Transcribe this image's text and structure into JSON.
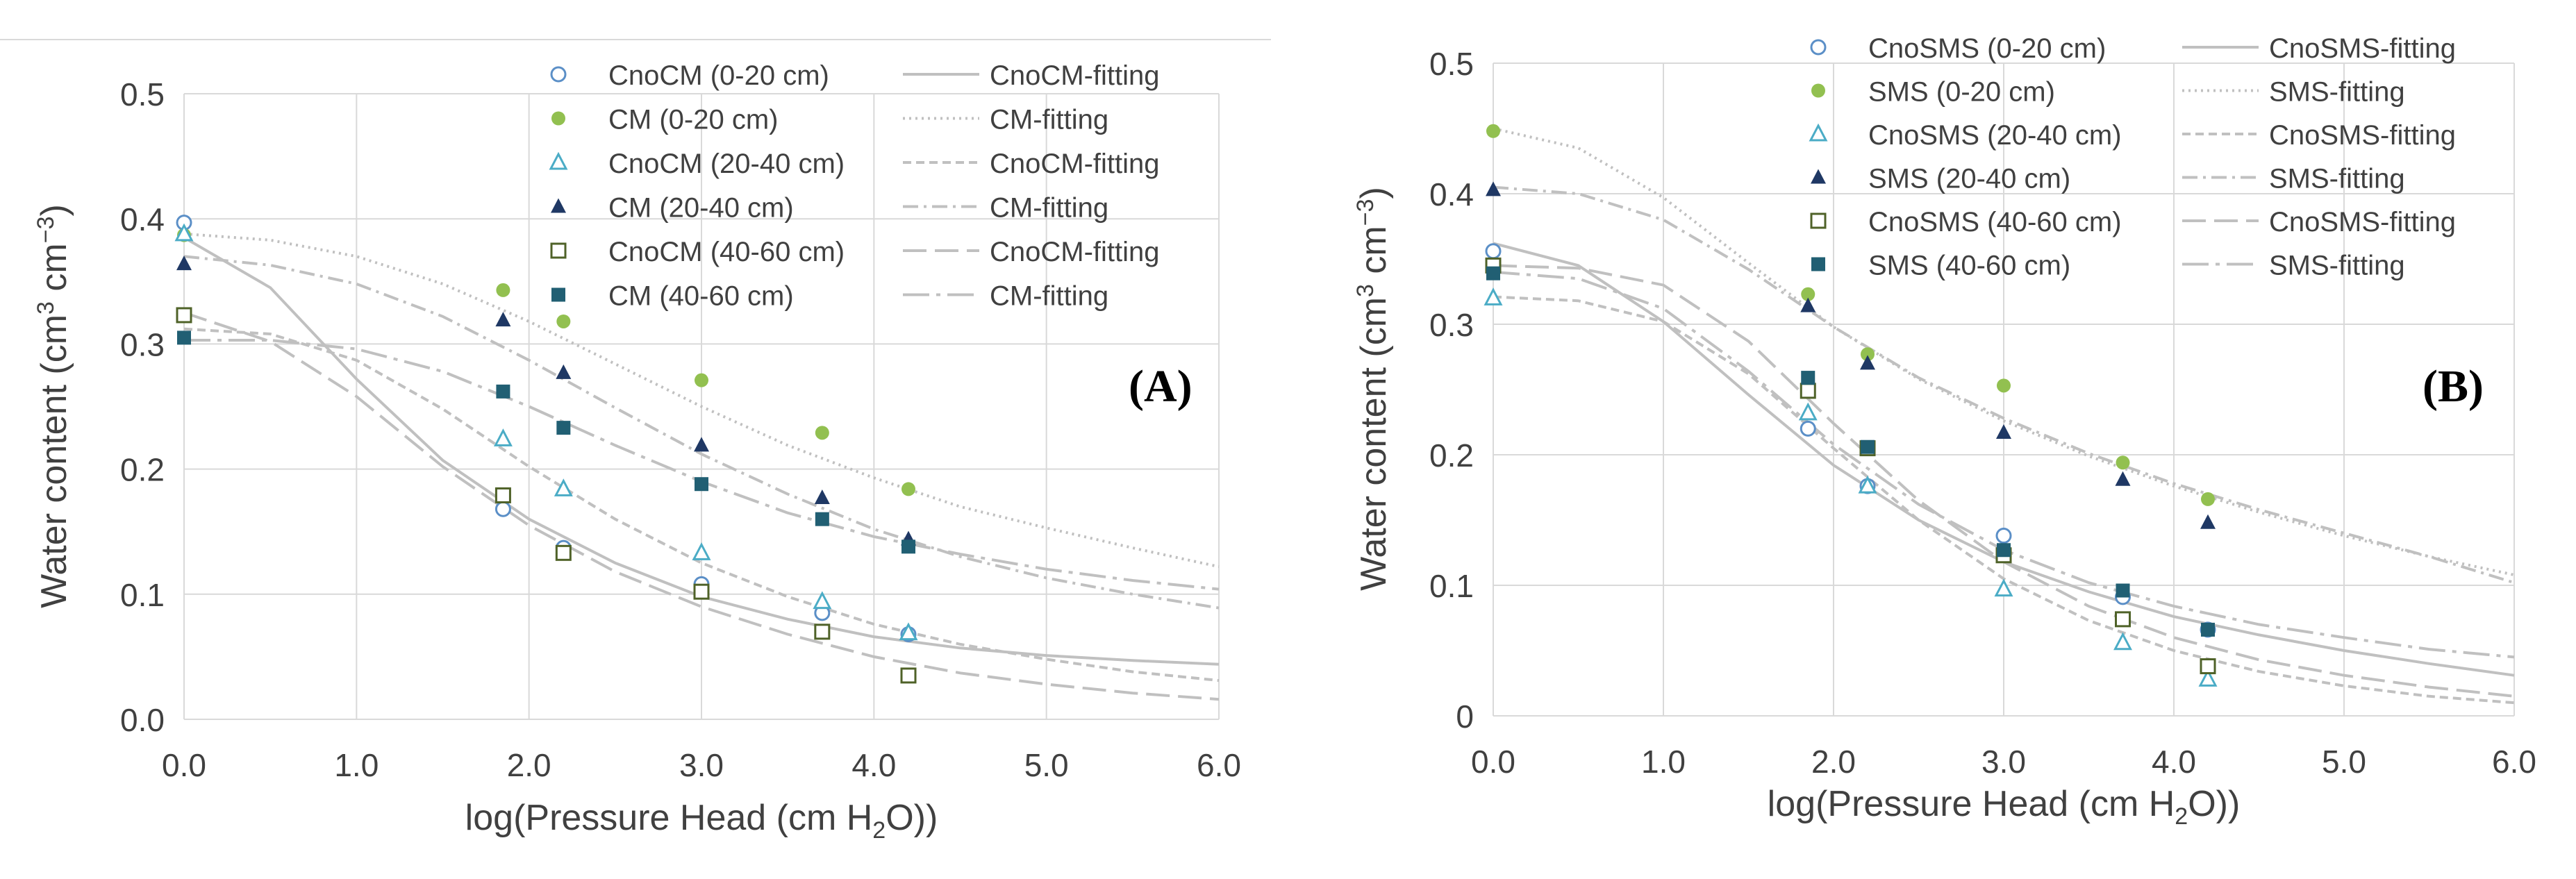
{
  "chart_data": [
    {
      "type": "scatter",
      "panel_label": "(A)",
      "xlabel_pre": "log(Pressure Head (cm H",
      "xlabel_sub": "2",
      "xlabel_post": "O))",
      "ylabel_pre": "Water content (cm",
      "ylabel_sup1": "3",
      "ylabel_mid": " cm",
      "ylabel_sup2": "−3",
      "ylabel_post": ")",
      "xlim": [
        0,
        6
      ],
      "ylim": [
        0,
        0.5
      ],
      "xticks": [
        0,
        1,
        2,
        3,
        4,
        5,
        6
      ],
      "xtick_labels": [
        "0.0",
        "1.0",
        "2.0",
        "3.0",
        "4.0",
        "5.0",
        "6.0"
      ],
      "yticks": [
        0,
        0.1,
        0.2,
        0.3,
        0.4,
        0.5
      ],
      "ytick_labels": [
        "0.0",
        "0.1",
        "0.2",
        "0.3",
        "0.4",
        "0.5"
      ],
      "grid": true,
      "legend_position": "top-right",
      "series": [
        {
          "name": "CnoCM (0-20 cm)",
          "marker": "circle-open",
          "color": "#5b8fc7",
          "x": [
            0,
            1.85,
            2.2,
            3.0,
            3.7,
            4.2
          ],
          "y": [
            0.397,
            0.168,
            0.137,
            0.108,
            0.085,
            0.068
          ]
        },
        {
          "name": "CM (0-20 cm)",
          "marker": "circle-filled",
          "color": "#92c050",
          "x": [
            0,
            1.85,
            2.2,
            3.0,
            3.7,
            4.2
          ],
          "y": [
            0.387,
            0.343,
            0.318,
            0.271,
            0.229,
            0.184
          ]
        },
        {
          "name": "CnoCM (20-40 cm)",
          "marker": "triangle-open",
          "color": "#4bacc6",
          "x": [
            0,
            1.85,
            2.2,
            3.0,
            3.7,
            4.2
          ],
          "y": [
            0.388,
            0.224,
            0.184,
            0.133,
            0.094,
            0.069
          ]
        },
        {
          "name": "CM (20-40 cm)",
          "marker": "triangle-filled",
          "color": "#1f3864",
          "x": [
            0,
            1.85,
            2.2,
            3.0,
            3.7,
            4.2
          ],
          "y": [
            0.364,
            0.319,
            0.277,
            0.219,
            0.177,
            0.144
          ]
        },
        {
          "name": "CnoCM (40-60 cm)",
          "marker": "square-open",
          "color": "#4f6228",
          "x": [
            0,
            1.85,
            2.2,
            3.0,
            3.7,
            4.2
          ],
          "y": [
            0.323,
            0.179,
            0.133,
            0.102,
            0.07,
            0.035
          ]
        },
        {
          "name": "CM (40-60 cm)",
          "marker": "square-filled",
          "color": "#215f73",
          "x": [
            0,
            1.85,
            2.2,
            3.0,
            3.7,
            4.2
          ],
          "y": [
            0.305,
            0.262,
            0.233,
            0.188,
            0.16,
            0.138
          ]
        }
      ],
      "fits": [
        {
          "name": "CnoCM-fitting",
          "dash": "solid",
          "x": [
            0,
            0.5,
            1,
            1.5,
            2,
            2.5,
            3,
            3.5,
            4,
            4.5,
            5,
            5.5,
            6
          ],
          "y": [
            0.385,
            0.345,
            0.272,
            0.207,
            0.16,
            0.125,
            0.098,
            0.08,
            0.066,
            0.057,
            0.051,
            0.047,
            0.044
          ]
        },
        {
          "name": "CM-fitting",
          "dash": "dotted",
          "x": [
            0,
            0.5,
            1,
            1.5,
            2,
            2.5,
            3,
            3.5,
            4,
            4.5,
            5,
            5.5,
            6
          ],
          "y": [
            0.388,
            0.383,
            0.37,
            0.348,
            0.318,
            0.284,
            0.25,
            0.219,
            0.193,
            0.17,
            0.153,
            0.137,
            0.122
          ]
        },
        {
          "name": "CnoCM-fitting",
          "dash": "short-dash",
          "x": [
            0,
            0.5,
            1,
            1.5,
            2,
            2.5,
            3,
            3.5,
            4,
            4.5,
            5,
            5.5,
            6
          ],
          "y": [
            0.312,
            0.308,
            0.287,
            0.248,
            0.202,
            0.16,
            0.125,
            0.098,
            0.076,
            0.06,
            0.048,
            0.038,
            0.031
          ]
        },
        {
          "name": "CM-fitting",
          "dash": "dash-dot",
          "x": [
            0,
            0.5,
            1,
            1.5,
            2,
            2.5,
            3,
            3.5,
            4,
            4.5,
            5,
            5.5,
            6
          ],
          "y": [
            0.37,
            0.363,
            0.348,
            0.322,
            0.287,
            0.249,
            0.212,
            0.18,
            0.152,
            0.13,
            0.113,
            0.1,
            0.089
          ]
        },
        {
          "name": "CnoCM-fitting",
          "dash": "long-dash",
          "x": [
            0,
            0.5,
            1,
            1.5,
            2,
            2.5,
            3,
            3.5,
            4,
            4.5,
            5,
            5.5,
            6
          ],
          "y": [
            0.325,
            0.302,
            0.258,
            0.202,
            0.155,
            0.118,
            0.09,
            0.068,
            0.05,
            0.037,
            0.028,
            0.021,
            0.016
          ]
        },
        {
          "name": "CM-fitting",
          "dash": "long-dash-dot",
          "x": [
            0,
            0.5,
            1,
            1.5,
            2,
            2.5,
            3,
            3.5,
            4,
            4.5,
            5,
            5.5,
            6
          ],
          "y": [
            0.303,
            0.303,
            0.296,
            0.278,
            0.25,
            0.219,
            0.19,
            0.165,
            0.146,
            0.132,
            0.12,
            0.111,
            0.104
          ]
        }
      ]
    },
    {
      "type": "scatter",
      "panel_label": "(B)",
      "xlabel_pre": "log(Pressure Head (cm H",
      "xlabel_sub": "2",
      "xlabel_post": "O))",
      "ylabel_pre": "Water content (cm",
      "ylabel_sup1": "3",
      "ylabel_mid": " cm",
      "ylabel_sup2": "−3",
      "ylabel_post": ")",
      "xlim": [
        0,
        6
      ],
      "ylim": [
        0,
        0.5
      ],
      "xticks": [
        0,
        1,
        2,
        3,
        4,
        5,
        6
      ],
      "xtick_labels": [
        "0.0",
        "1.0",
        "2.0",
        "3.0",
        "4.0",
        "5.0",
        "6.0"
      ],
      "yticks": [
        0,
        0.1,
        0.2,
        0.3,
        0.4,
        0.5
      ],
      "ytick_labels": [
        "0",
        "0.1",
        "0.2",
        "0.3",
        "0.4",
        "0.5"
      ],
      "grid": true,
      "legend_position": "top-right",
      "series": [
        {
          "name": "CnoSMS (0-20 cm)",
          "marker": "circle-open",
          "color": "#5b8fc7",
          "x": [
            0,
            1.85,
            2.2,
            3.0,
            3.7,
            4.2
          ],
          "y": [
            0.356,
            0.22,
            0.176,
            0.138,
            0.091,
            0.066
          ]
        },
        {
          "name": "SMS (0-20 cm)",
          "marker": "circle-filled",
          "color": "#92c050",
          "x": [
            0,
            1.85,
            2.2,
            3.0,
            3.7,
            4.2
          ],
          "y": [
            0.448,
            0.323,
            0.277,
            0.253,
            0.194,
            0.166
          ]
        },
        {
          "name": "CnoSMS (20-40 cm)",
          "marker": "triangle-open",
          "color": "#4bacc6",
          "x": [
            0,
            1.85,
            2.2,
            3.0,
            3.7,
            4.2
          ],
          "y": [
            0.32,
            0.232,
            0.176,
            0.097,
            0.056,
            0.028
          ]
        },
        {
          "name": "SMS (20-40 cm)",
          "marker": "triangle-filled",
          "color": "#1f3864",
          "x": [
            0,
            1.85,
            2.2,
            3.0,
            3.7,
            4.2
          ],
          "y": [
            0.403,
            0.314,
            0.27,
            0.217,
            0.181,
            0.148
          ]
        },
        {
          "name": "CnoSMS (40-60 cm)",
          "marker": "square-open",
          "color": "#4f6228",
          "x": [
            0,
            1.85,
            2.2,
            3.0,
            3.7,
            4.2
          ],
          "y": [
            0.345,
            0.249,
            0.205,
            0.123,
            0.074,
            0.038
          ]
        },
        {
          "name": "SMS (40-60 cm)",
          "marker": "square-filled",
          "color": "#215f73",
          "x": [
            0,
            1.85,
            2.2,
            3.0,
            3.7,
            4.2
          ],
          "y": [
            0.339,
            0.259,
            0.206,
            0.127,
            0.096,
            0.066
          ]
        }
      ],
      "fits": [
        {
          "name": "CnoSMS-fitting",
          "dash": "solid",
          "x": [
            0,
            0.5,
            1,
            1.5,
            2,
            2.5,
            3,
            3.5,
            4,
            4.5,
            5,
            5.5,
            6
          ],
          "y": [
            0.362,
            0.345,
            0.302,
            0.246,
            0.192,
            0.15,
            0.118,
            0.095,
            0.076,
            0.062,
            0.05,
            0.04,
            0.031
          ]
        },
        {
          "name": "SMS-fitting",
          "dash": "dotted",
          "x": [
            0,
            0.5,
            1,
            1.5,
            2,
            2.5,
            3,
            3.5,
            4,
            4.5,
            5,
            5.5,
            6
          ],
          "y": [
            0.45,
            0.435,
            0.397,
            0.347,
            0.298,
            0.258,
            0.226,
            0.199,
            0.176,
            0.156,
            0.138,
            0.122,
            0.108
          ]
        },
        {
          "name": "CnoSMS-fitting",
          "dash": "short-dash",
          "x": [
            0,
            0.5,
            1,
            1.5,
            2,
            2.5,
            3,
            3.5,
            4,
            4.5,
            5,
            5.5,
            6
          ],
          "y": [
            0.321,
            0.318,
            0.302,
            0.262,
            0.205,
            0.15,
            0.105,
            0.073,
            0.05,
            0.034,
            0.023,
            0.015,
            0.01
          ]
        },
        {
          "name": "SMS-fitting",
          "dash": "dash-dot",
          "x": [
            0,
            0.5,
            1,
            1.5,
            2,
            2.5,
            3,
            3.5,
            4,
            4.5,
            5,
            5.5,
            6
          ],
          "y": [
            0.405,
            0.4,
            0.38,
            0.342,
            0.298,
            0.259,
            0.228,
            0.201,
            0.178,
            0.158,
            0.14,
            0.122,
            0.102
          ]
        },
        {
          "name": "CnoSMS-fitting",
          "dash": "long-dash",
          "x": [
            0,
            0.5,
            1,
            1.5,
            2,
            2.5,
            3,
            3.5,
            4,
            4.5,
            5,
            5.5,
            6
          ],
          "y": [
            0.345,
            0.343,
            0.33,
            0.287,
            0.224,
            0.165,
            0.118,
            0.084,
            0.06,
            0.043,
            0.031,
            0.022,
            0.015
          ]
        },
        {
          "name": "SMS-fitting",
          "dash": "long-dash-dot",
          "x": [
            0,
            0.5,
            1,
            1.5,
            2,
            2.5,
            3,
            3.5,
            4,
            4.5,
            5,
            5.5,
            6
          ],
          "y": [
            0.34,
            0.335,
            0.312,
            0.264,
            0.208,
            0.162,
            0.127,
            0.102,
            0.084,
            0.07,
            0.06,
            0.051,
            0.045
          ]
        }
      ]
    }
  ]
}
